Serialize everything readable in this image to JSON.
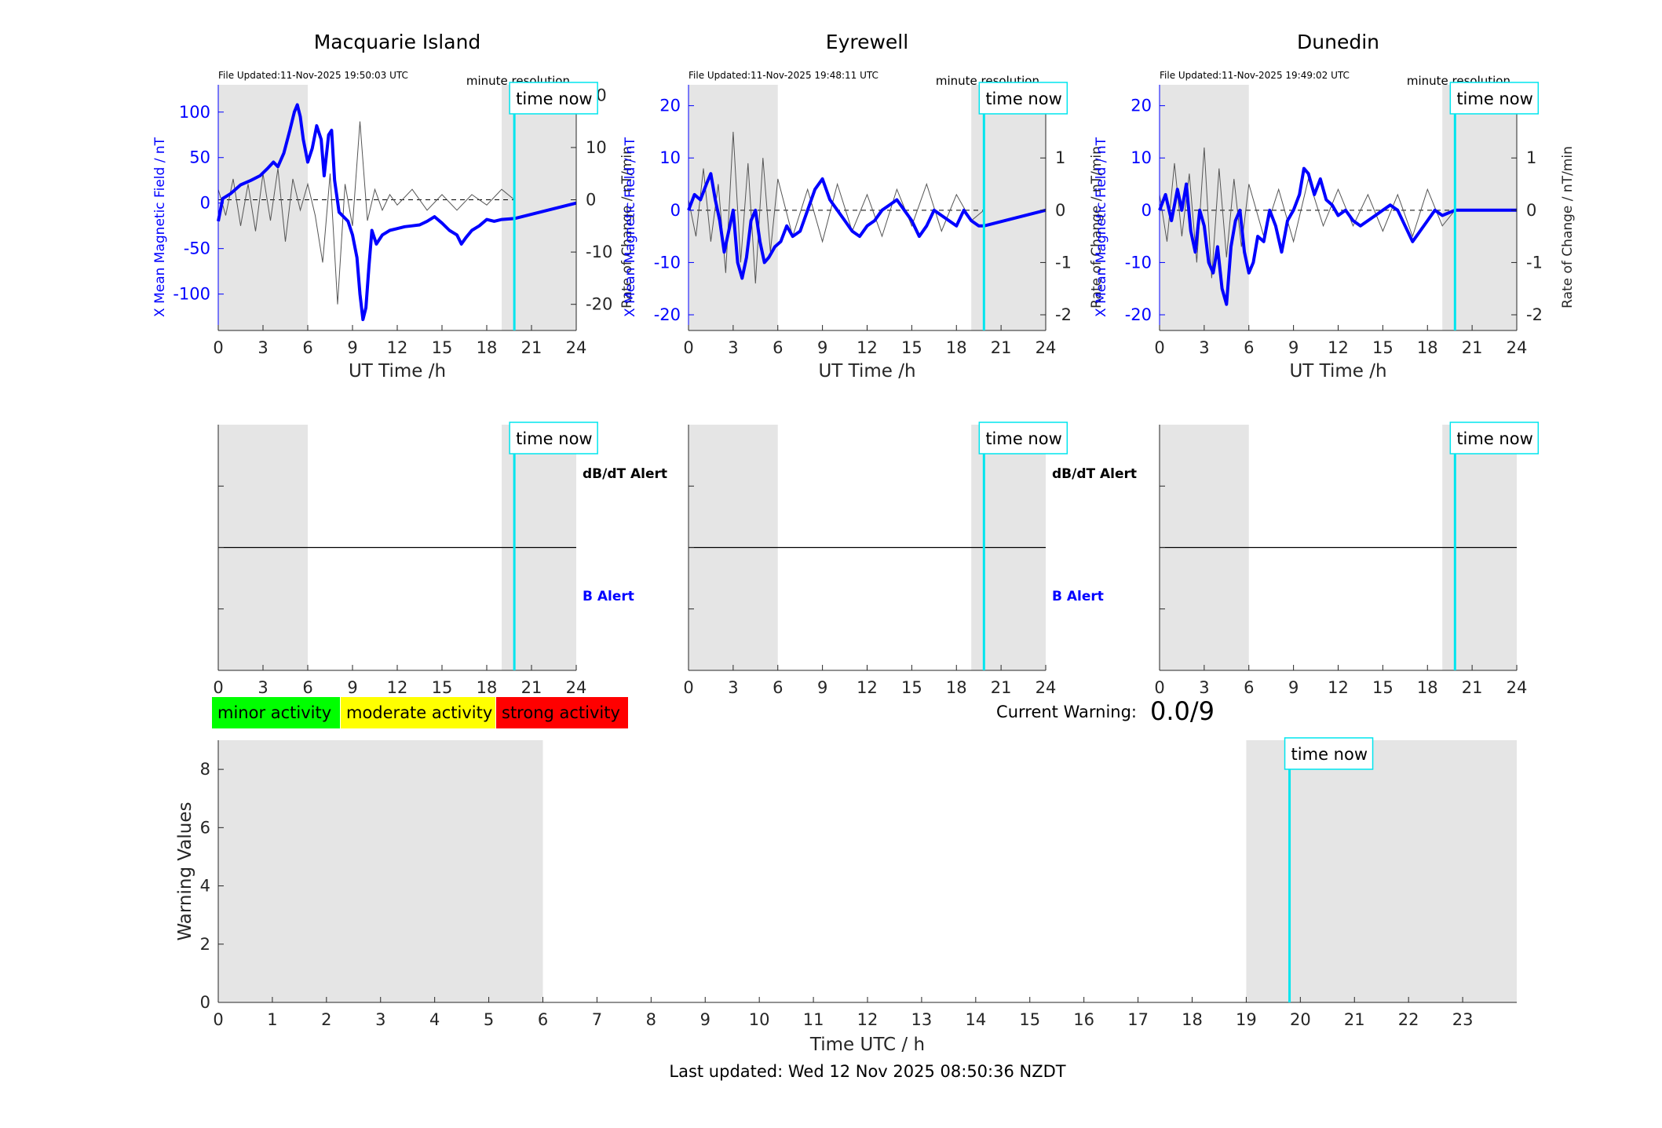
{
  "footer": "Last updated: Wed 12 Nov 2025 08:50:36 NZDT",
  "warning": {
    "label": "Current Warning:",
    "value": "0.0/9"
  },
  "legend": [
    {
      "label": "minor activity",
      "color": "#00ff00"
    },
    {
      "label": "moderate activity",
      "color": "#ffff00"
    },
    {
      "label": "strong activity",
      "color": "#ff0000"
    }
  ],
  "colors": {
    "field": "#0000ff",
    "rate": "#555555",
    "now": "#00e5ee",
    "shade": "#e5e5e5",
    "alert_db": "#000000",
    "alert_b": "#0000ff"
  },
  "chart_data": [
    {
      "type": "line",
      "title": "Macquarie Island",
      "note": "File Updated:11-Nov-2025 19:50:03 UTC",
      "resolution": "minute resolution",
      "marker": "time now",
      "now_h": 19.85,
      "shade": [
        [
          0,
          6
        ],
        [
          19,
          24
        ]
      ],
      "xlabel": "UT Time /h",
      "ylabel": "X Mean Magnetic Field / nT",
      "y2label": "Rate of Change / nT/min",
      "xlim": [
        0,
        24
      ],
      "xticks": [
        0,
        3,
        6,
        9,
        12,
        15,
        18,
        21,
        24
      ],
      "ylim": [
        -140,
        130
      ],
      "yticks": [
        -100,
        -50,
        0,
        50,
        100
      ],
      "y2lim": [
        -25,
        22
      ],
      "y2ticks": [
        -20,
        -10,
        0,
        10,
        20
      ],
      "series": [
        {
          "x": [
            0,
            0.3,
            0.8,
            1.5,
            2.2,
            2.8,
            3.3,
            3.7,
            4.0,
            4.4,
            4.8,
            5.1,
            5.3,
            5.5,
            5.7,
            6.0,
            6.3,
            6.6,
            6.9,
            7.1,
            7.4,
            7.6,
            7.8,
            8.1,
            8.4,
            8.7,
            9.0,
            9.3,
            9.5,
            9.7,
            9.9,
            10.1,
            10.3,
            10.6,
            11.0,
            11.5,
            12.0,
            12.5,
            13.0,
            13.5,
            14.0,
            14.5,
            15.0,
            15.5,
            16.0,
            16.3,
            16.6,
            17.0,
            17.5,
            18.0,
            18.5,
            19.0,
            19.85,
            24
          ],
          "y": [
            -20,
            5,
            10,
            20,
            25,
            30,
            38,
            45,
            40,
            55,
            80,
            100,
            108,
            95,
            70,
            45,
            60,
            85,
            70,
            30,
            75,
            80,
            25,
            -10,
            -15,
            -20,
            -35,
            -60,
            -100,
            -128,
            -115,
            -70,
            -30,
            -45,
            -35,
            -30,
            -28,
            -26,
            -25,
            -24,
            -20,
            -15,
            -22,
            -30,
            -35,
            -45,
            -38,
            -30,
            -25,
            -18,
            -20,
            -18,
            -17,
            0
          ]
        },
        {
          "x": [
            0,
            0.5,
            1,
            1.5,
            2,
            2.5,
            3,
            3.5,
            4,
            4.5,
            5,
            5.5,
            6,
            6.5,
            7,
            7.5,
            8,
            8.5,
            9,
            9.5,
            10,
            10.5,
            11,
            11.5,
            12,
            13,
            14,
            15,
            16,
            17,
            18,
            19,
            19.85
          ],
          "y": [
            2,
            -3,
            4,
            -5,
            3,
            -6,
            5,
            -4,
            6,
            -8,
            4,
            -2,
            3,
            -3,
            -12,
            5,
            -20,
            3,
            -5,
            15,
            -4,
            2,
            -2,
            1,
            -1,
            2,
            -2,
            1,
            -2,
            1,
            -1,
            2,
            0
          ]
        }
      ]
    },
    {
      "type": "line",
      "title": "Eyrewell",
      "note": "File Updated:11-Nov-2025 19:48:11 UTC",
      "resolution": "minute resolution",
      "marker": "time now",
      "now_h": 19.85,
      "shade": [
        [
          0,
          6
        ],
        [
          19,
          24
        ]
      ],
      "xlabel": "UT Time /h",
      "ylabel": "X Mean Magnetic Field / nT",
      "y2label": "Rate of Change / nT/min",
      "xlim": [
        0,
        24
      ],
      "xticks": [
        0,
        3,
        6,
        9,
        12,
        15,
        18,
        21,
        24
      ],
      "ylim": [
        -23,
        24
      ],
      "yticks": [
        -20,
        -10,
        0,
        10,
        20
      ],
      "y2lim": [
        -2.3,
        2.4
      ],
      "y2ticks": [
        -2,
        -1,
        0,
        1,
        2
      ],
      "series": [
        {
          "x": [
            0,
            0.4,
            0.8,
            1.2,
            1.5,
            1.8,
            2.1,
            2.4,
            2.7,
            3.0,
            3.3,
            3.6,
            3.9,
            4.2,
            4.5,
            4.8,
            5.1,
            5.4,
            5.8,
            6.2,
            6.6,
            7.0,
            7.5,
            8.0,
            8.5,
            9.0,
            9.5,
            10.0,
            10.5,
            11.0,
            11.5,
            12.0,
            12.5,
            13.0,
            13.5,
            14.0,
            14.5,
            15.0,
            15.5,
            16.0,
            16.5,
            17.0,
            17.5,
            18.0,
            18.5,
            19.0,
            19.5,
            19.85,
            24
          ],
          "y": [
            0,
            3,
            2,
            5,
            7,
            2,
            -2,
            -8,
            -4,
            0,
            -10,
            -13,
            -9,
            -2,
            0,
            -6,
            -10,
            -9,
            -7,
            -6,
            -3,
            -5,
            -4,
            0,
            4,
            6,
            2,
            0,
            -2,
            -4,
            -5,
            -3,
            -2,
            0,
            1,
            2,
            0,
            -2,
            -5,
            -3,
            0,
            -1,
            -2,
            -3,
            0,
            -2,
            -3,
            -3,
            0
          ]
        },
        {
          "x": [
            0,
            0.5,
            1,
            1.5,
            2,
            2.5,
            3,
            3.5,
            4,
            4.5,
            5,
            5.5,
            6,
            7,
            8,
            9,
            10,
            11,
            12,
            13,
            14,
            15,
            16,
            17,
            18,
            19,
            19.85
          ],
          "y": [
            0.2,
            -0.5,
            0.8,
            -0.6,
            0.5,
            -1.2,
            1.5,
            -1,
            0.9,
            -1.4,
            1.0,
            -0.8,
            0.6,
            -0.5,
            0.4,
            -0.6,
            0.5,
            -0.4,
            0.3,
            -0.5,
            0.4,
            -0.3,
            0.5,
            -0.4,
            0.3,
            -0.2,
            0
          ]
        }
      ]
    },
    {
      "type": "line",
      "title": "Dunedin",
      "note": "File Updated:11-Nov-2025 19:49:02 UTC",
      "resolution": "minute resolution",
      "marker": "time now",
      "now_h": 19.85,
      "shade": [
        [
          0,
          6
        ],
        [
          19,
          24
        ]
      ],
      "xlabel": "UT Time /h",
      "ylabel": "X Mean Magnetic Field / nT",
      "y2label": "Rate of Change / nT/min",
      "xlim": [
        0,
        24
      ],
      "xticks": [
        0,
        3,
        6,
        9,
        12,
        15,
        18,
        21,
        24
      ],
      "ylim": [
        -23,
        24
      ],
      "yticks": [
        -20,
        -10,
        0,
        10,
        20
      ],
      "y2lim": [
        -2.3,
        2.4
      ],
      "y2ticks": [
        -2,
        -1,
        0,
        1,
        2
      ],
      "series": [
        {
          "x": [
            0,
            0.4,
            0.8,
            1.2,
            1.5,
            1.8,
            2.1,
            2.4,
            2.7,
            3.0,
            3.3,
            3.6,
            3.9,
            4.2,
            4.5,
            4.8,
            5.1,
            5.4,
            5.7,
            6.0,
            6.3,
            6.6,
            7.0,
            7.4,
            7.8,
            8.2,
            8.6,
            9.0,
            9.4,
            9.7,
            10.0,
            10.4,
            10.8,
            11.2,
            11.6,
            12.0,
            12.5,
            13.0,
            13.5,
            14.0,
            14.5,
            15.0,
            15.5,
            16.0,
            16.5,
            17.0,
            17.5,
            18.0,
            18.5,
            19.0,
            19.85,
            24
          ],
          "y": [
            0,
            3,
            -2,
            4,
            0,
            5,
            -4,
            -8,
            0,
            -3,
            -10,
            -12,
            -7,
            -15,
            -18,
            -7,
            -2,
            0,
            -8,
            -12,
            -10,
            -5,
            -6,
            0,
            -3,
            -8,
            -2,
            0,
            3,
            8,
            7,
            3,
            6,
            2,
            1,
            -1,
            0,
            -2,
            -3,
            -2,
            -1,
            0,
            1,
            0,
            -3,
            -6,
            -4,
            -2,
            0,
            -1,
            0,
            0
          ]
        },
        {
          "x": [
            0,
            0.5,
            1,
            1.5,
            2,
            2.5,
            3,
            3.5,
            4,
            4.5,
            5,
            5.5,
            6,
            7,
            8,
            9,
            10,
            11,
            12,
            13,
            14,
            15,
            16,
            17,
            18,
            19,
            19.85
          ],
          "y": [
            0.3,
            -0.6,
            0.9,
            -0.5,
            0.7,
            -1.0,
            1.2,
            -1.3,
            0.8,
            -0.9,
            0.6,
            -0.7,
            0.5,
            -0.5,
            0.4,
            -0.6,
            0.6,
            -0.3,
            0.4,
            -0.3,
            0.3,
            -0.4,
            0.3,
            -0.5,
            0.4,
            -0.3,
            0
          ]
        }
      ]
    },
    {
      "type": "line",
      "title": "",
      "labels": {
        "db": "dB/dT Alert",
        "b": "B Alert"
      },
      "marker": "time now",
      "now_h": 19.85,
      "shade": [
        [
          0,
          6
        ],
        [
          19,
          24
        ]
      ],
      "xlim": [
        0,
        24
      ],
      "xticks": [
        0,
        3,
        6,
        9,
        12,
        15,
        18,
        21,
        24
      ],
      "series": []
    },
    {
      "type": "line",
      "title": "",
      "labels": {
        "db": "dB/dT Alert",
        "b": "B Alert"
      },
      "marker": "time now",
      "now_h": 19.85,
      "shade": [
        [
          0,
          6
        ],
        [
          19,
          24
        ]
      ],
      "xlim": [
        0,
        24
      ],
      "xticks": [
        0,
        3,
        6,
        9,
        12,
        15,
        18,
        21,
        24
      ],
      "series": []
    },
    {
      "type": "line",
      "title": "",
      "marker": "time now",
      "now_h": 19.85,
      "shade": [
        [
          0,
          6
        ],
        [
          19,
          24
        ]
      ],
      "xlim": [
        0,
        24
      ],
      "xticks": [
        0,
        3,
        6,
        9,
        12,
        15,
        18,
        21,
        24
      ],
      "series": []
    },
    {
      "type": "line",
      "title": "",
      "xlabel": "Time UTC / h",
      "ylabel": "Warning Values",
      "marker": "time now",
      "now_h": 19.8,
      "shade": [
        [
          0,
          6
        ],
        [
          19,
          24
        ]
      ],
      "xlim": [
        0,
        24
      ],
      "xticks": [
        0,
        1,
        2,
        3,
        4,
        5,
        6,
        7,
        8,
        9,
        10,
        11,
        12,
        13,
        14,
        15,
        16,
        17,
        18,
        19,
        20,
        21,
        22,
        23
      ],
      "ylim": [
        0,
        9
      ],
      "yticks": [
        0,
        2,
        4,
        6,
        8
      ],
      "series": []
    }
  ]
}
